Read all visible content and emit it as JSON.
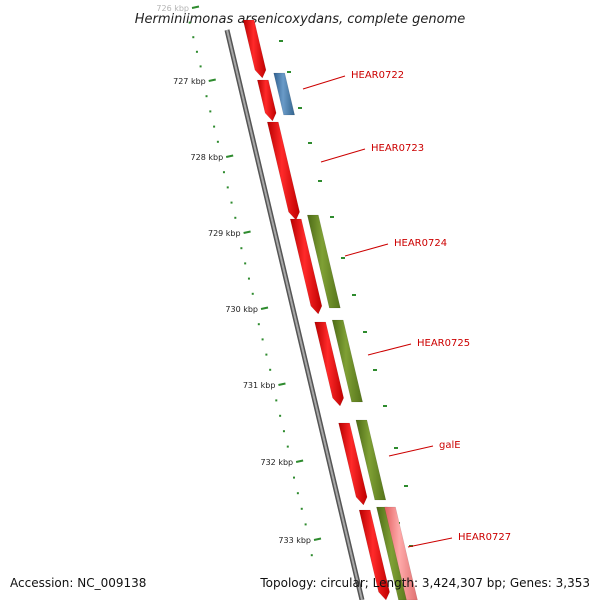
{
  "title": "Herminiimonas arsenicoxydans, complete genome",
  "accession": "Accession: NC_009138",
  "summary": "Topology: circular; Length: 3,424,307 bp; Genes: 3,353",
  "colors": {
    "backbone": "#808080",
    "ticks": "#2e8b2e",
    "cds_forward": "#ff0000",
    "cog_blue": "#4a7fb0",
    "cog_green": "#6b8e23",
    "cds_pink": "#f08080",
    "label": "#cc0000"
  },
  "scale": {
    "tick_labels": [
      "726 kbp",
      "727 kbp",
      "728 kbp",
      "729 kbp",
      "730 kbp",
      "731 kbp",
      "732 kbp",
      "733 kbp"
    ]
  },
  "genes": [
    {
      "name": "HEAR0722"
    },
    {
      "name": "HEAR0723"
    },
    {
      "name": "HEAR0724"
    },
    {
      "name": "HEAR0725"
    },
    {
      "name": "galE"
    },
    {
      "name": "HEAR0727"
    }
  ]
}
